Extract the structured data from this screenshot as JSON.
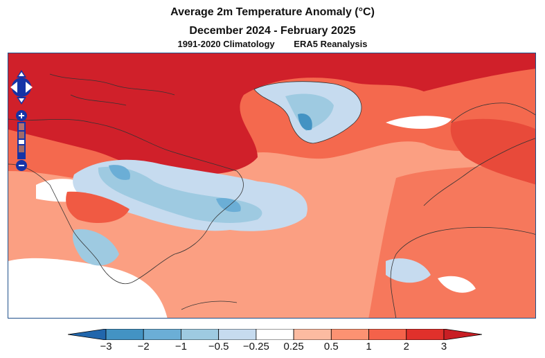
{
  "header": {
    "title": "Average 2m Temperature Anomaly (°C)",
    "period": "December 2024 - February 2025",
    "climatology": "1991-2020 Climatology",
    "dataset": "ERA5 Reanalysis"
  },
  "map_controls": {
    "pan_icons": [
      "pan-up-icon",
      "pan-left-icon",
      "pan-right-icon",
      "pan-down-icon"
    ],
    "zoom_in_label": "+",
    "zoom_out_label": "−"
  },
  "colorbar": {
    "unit": "°C",
    "labels": [
      "−3",
      "−2",
      "−1",
      "−0.5",
      "−0.25",
      "0.25",
      "0.5",
      "1",
      "2",
      "3"
    ],
    "colors": [
      "#2166ac",
      "#4393c3",
      "#6baed6",
      "#9ecae1",
      "#c6dbef",
      "#ffffff",
      "#fcbba1",
      "#fc9272",
      "#f4624a",
      "#e0302b",
      "#c81e24"
    ]
  },
  "palette": {
    "frame": "#1d4f8a",
    "land_border": "#333333",
    "control_fill": "#1533a6",
    "control_dark": "#0b1f6e"
  }
}
